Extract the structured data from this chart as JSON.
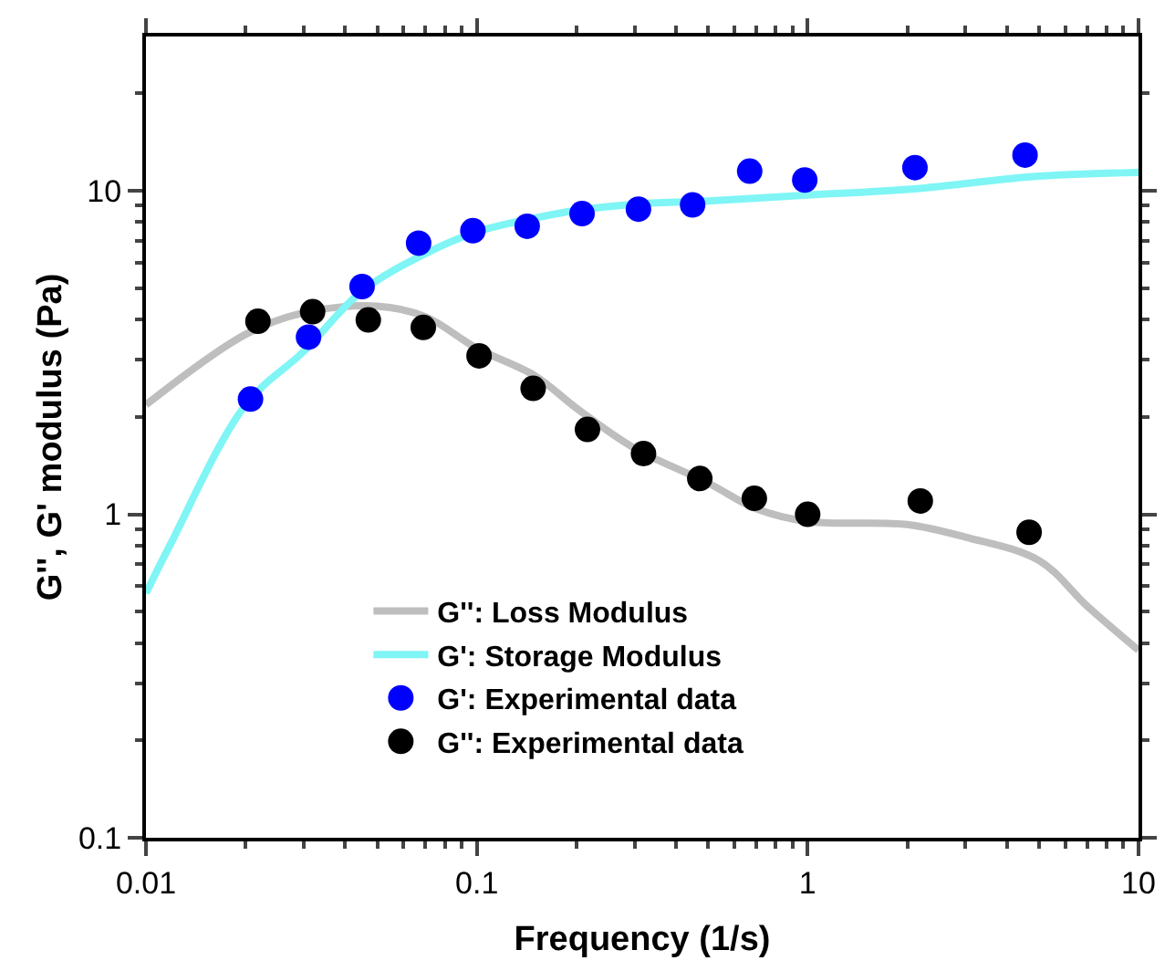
{
  "chart_data": {
    "type": "line",
    "xlabel": "Frequency (1/s)",
    "ylabel": "G'', G' modulus (Pa)",
    "log": "xy",
    "xlim": [
      0.01,
      10
    ],
    "ylim": [
      0.1,
      30
    ],
    "xticks": [
      0.01,
      0.1,
      1,
      10
    ],
    "yticks": [
      0.1,
      1,
      10
    ],
    "legend": "bottom",
    "series": [
      {
        "name": "G'': Loss Modulus",
        "color": "#bebebe",
        "marker": "none",
        "line_style": "solid",
        "x": [
          0.01,
          0.02,
          0.03,
          0.05,
          0.07,
          0.1,
          0.15,
          0.2,
          0.3,
          0.5,
          0.7,
          1,
          2,
          3,
          5,
          7,
          10
        ],
        "values": [
          2.18,
          3.6,
          4.2,
          4.4,
          4.08,
          3.26,
          2.68,
          2.13,
          1.6,
          1.25,
          1.04,
          0.95,
          0.93,
          0.85,
          0.72,
          0.52,
          0.38
        ]
      },
      {
        "name": "G': Storage Modulus",
        "color": "#7ff5f5",
        "marker": "none",
        "line_style": "solid",
        "x": [
          0.01,
          0.0118,
          0.02,
          0.03,
          0.045,
          0.07,
          0.1,
          0.15,
          0.2,
          0.3,
          0.5,
          1,
          2,
          5,
          10
        ],
        "values": [
          0.57,
          0.8,
          2.18,
          3.19,
          4.9,
          6.4,
          7.47,
          8.24,
          8.7,
          9.1,
          9.3,
          9.7,
          10.1,
          11.1,
          11.4
        ]
      },
      {
        "name": "G': Experimental data",
        "type": "scatter",
        "color": "#0000ff",
        "marker": "circle",
        "x": [
          0.0207,
          0.031,
          0.045,
          0.0667,
          0.0973,
          0.142,
          0.208,
          0.308,
          0.449,
          0.668,
          0.98,
          2.11,
          4.54
        ],
        "values": [
          2.27,
          3.53,
          5.06,
          6.89,
          7.53,
          7.77,
          8.5,
          8.78,
          9.05,
          11.5,
          10.8,
          11.8,
          12.9
        ]
      },
      {
        "name": "G'': Experimental data",
        "type": "scatter",
        "color": "#000000",
        "marker": "circle",
        "x": [
          0.0218,
          0.0319,
          0.047,
          0.0689,
          0.1016,
          0.148,
          0.216,
          0.319,
          0.472,
          0.69,
          1.0,
          2.19,
          4.67
        ],
        "values": [
          3.95,
          4.23,
          3.99,
          3.78,
          3.09,
          2.45,
          1.83,
          1.54,
          1.29,
          1.12,
          1.0,
          1.1,
          0.88
        ]
      }
    ]
  }
}
